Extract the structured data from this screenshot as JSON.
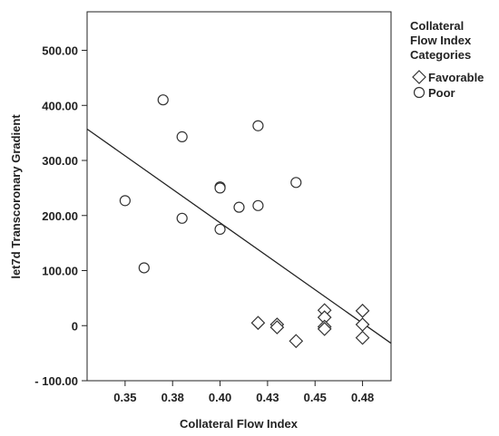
{
  "chart_data": {
    "type": "scatter",
    "xlabel": "Collateral Flow Index",
    "ylabel": "let7d Transcoronary Gradient",
    "xlim": [
      0.33,
      0.49
    ],
    "ylim": [
      -100,
      570
    ],
    "x_ticks": [
      0.35,
      0.375,
      0.4,
      0.425,
      0.45,
      0.475
    ],
    "x_tick_labels": [
      "0.35",
      "0.38",
      "0.40",
      "0.43",
      "0.45",
      "0.48"
    ],
    "y_ticks": [
      -100,
      0,
      100,
      200,
      300,
      400,
      500
    ],
    "y_tick_labels": [
      "- 100.00",
      "0",
      "100.00",
      "200.00",
      "300.00",
      "400.00",
      "500.00"
    ],
    "grid": false,
    "legend": {
      "title": [
        "Collateral",
        "Flow Index",
        "Categories"
      ],
      "placement": "right",
      "entries": [
        {
          "label": "Favorable",
          "marker": "diamond"
        },
        {
          "label": "Poor",
          "marker": "circle"
        }
      ]
    },
    "series": [
      {
        "name": "Poor",
        "marker": "circle",
        "points": [
          [
            0.35,
            227
          ],
          [
            0.36,
            105
          ],
          [
            0.37,
            410
          ],
          [
            0.38,
            343
          ],
          [
            0.38,
            195
          ],
          [
            0.4,
            252
          ],
          [
            0.4,
            250
          ],
          [
            0.4,
            175
          ],
          [
            0.41,
            215
          ],
          [
            0.42,
            363
          ],
          [
            0.42,
            218
          ],
          [
            0.44,
            260
          ]
        ]
      },
      {
        "name": "Favorable",
        "marker": "diamond",
        "points": [
          [
            0.42,
            5
          ],
          [
            0.43,
            2
          ],
          [
            0.43,
            -3
          ],
          [
            0.44,
            -28
          ],
          [
            0.455,
            28
          ],
          [
            0.455,
            15
          ],
          [
            0.455,
            -2
          ],
          [
            0.455,
            -6
          ],
          [
            0.475,
            27
          ],
          [
            0.475,
            2
          ],
          [
            0.475,
            -22
          ]
        ]
      }
    ],
    "fit_line": {
      "x": [
        0.33,
        0.49
      ],
      "y": [
        357,
        -32
      ]
    }
  },
  "colors": {
    "marker_fill": "#ffffff",
    "marker_stroke": "#333333",
    "line": "#222222",
    "axis": "#222222"
  }
}
